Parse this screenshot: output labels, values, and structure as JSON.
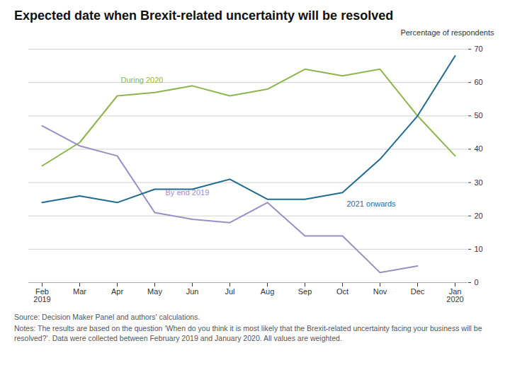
{
  "chart_data": {
    "type": "line",
    "title": "Expected date when Brexit-related uncertainty will be resolved",
    "y_label": "Percentage of respondents",
    "categories": [
      "Feb\n2019",
      "Mar",
      "Apr",
      "May",
      "Jun",
      "Jul",
      "Aug",
      "Sep",
      "Oct",
      "Nov",
      "Dec",
      "Jan\n2020"
    ],
    "series": [
      {
        "name": "During 2020",
        "color": "#8db54b",
        "values": [
          35,
          42,
          56,
          57,
          59,
          56,
          58,
          64,
          62,
          64,
          50,
          38
        ]
      },
      {
        "name": "By end 2019",
        "color": "#9b8ec4",
        "values": [
          47,
          41,
          38,
          21,
          19,
          18,
          24,
          14,
          14,
          3,
          5,
          null
        ]
      },
      {
        "name": "2021 onwards",
        "color": "#1f6b8e",
        "values": [
          24,
          26,
          24,
          28,
          28,
          31,
          25,
          25,
          27,
          37,
          50,
          68
        ]
      }
    ],
    "ylim": [
      0,
      70
    ],
    "yticks": [
      0,
      10,
      20,
      30,
      40,
      50,
      60,
      70
    ],
    "grid": true,
    "source": "Source: Decision Maker Panel and authors' calculations.",
    "notes": "Notes: The results are based on the question ‘When do you think it is most likely that the Brexit-related uncertainty facing your business will be resolved?’. Data were collected between February 2019 and January 2020.  All values are weighted."
  }
}
